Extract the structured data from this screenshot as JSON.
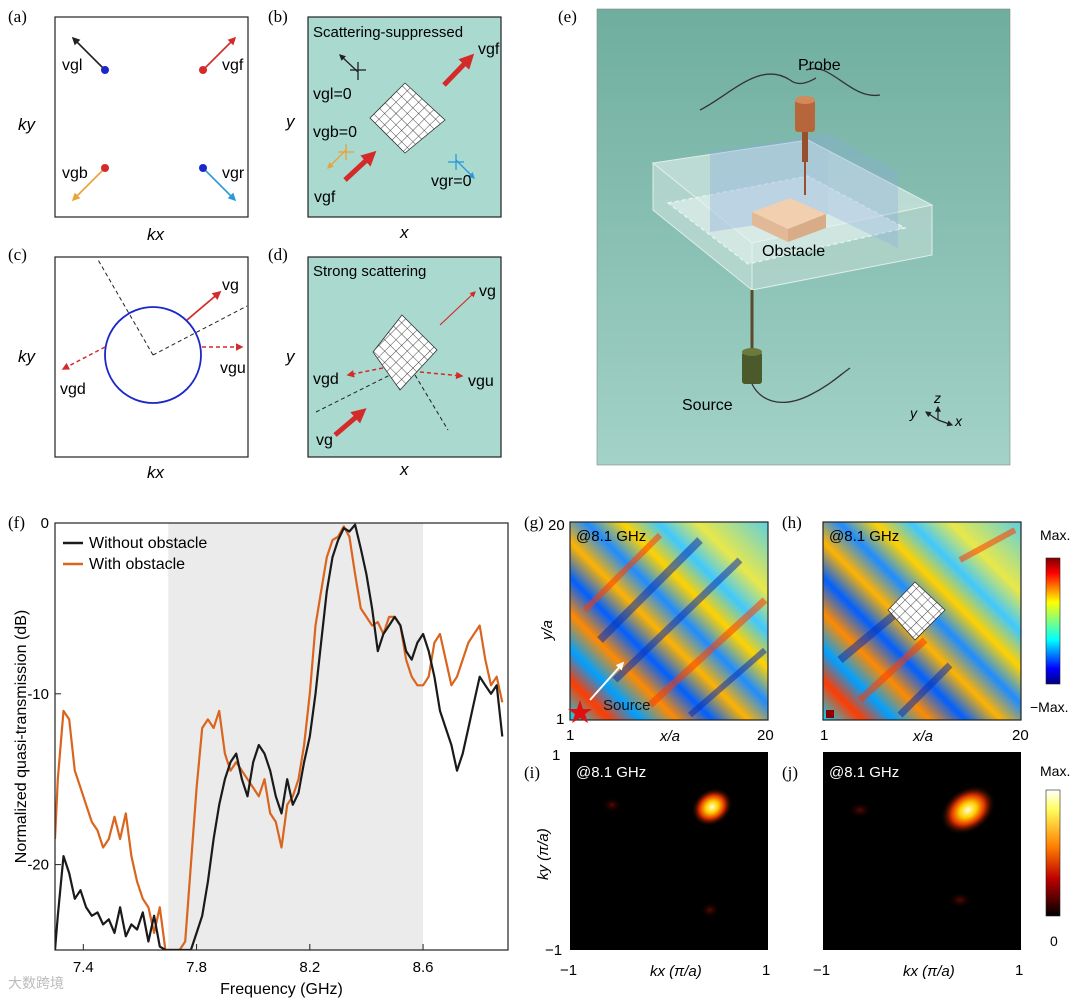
{
  "panel_labels": {
    "a": "(a)",
    "b": "(b)",
    "c": "(c)",
    "d": "(d)",
    "e": "(e)",
    "f": "(f)",
    "g": "(g)",
    "h": "(h)",
    "i": "(i)",
    "j": "(j)"
  },
  "panel_a": {
    "ky": "ky",
    "kx": "kx",
    "vgl": "vgl",
    "vgf": "vgf",
    "vgb": "vgb",
    "vgr": "vgr"
  },
  "panel_b": {
    "title": "Scattering-suppressed",
    "y": "y",
    "x": "x",
    "vgf_top": "vgf",
    "vgl0": "vgl=0",
    "vgb0": "vgb=0",
    "vgr0": "vgr=0",
    "vgf_bottom": "vgf"
  },
  "panel_c": {
    "ky": "ky",
    "kx": "kx",
    "vg": "vg",
    "vgd": "vgd",
    "vgu": "vgu"
  },
  "panel_d": {
    "title": "Strong scattering",
    "y": "y",
    "x": "x",
    "vg_top": "vg",
    "vgd": "vgd",
    "vgu": "vgu",
    "vg_bottom": "vg"
  },
  "panel_e": {
    "probe": "Probe",
    "obstacle": "Obstacle",
    "source": "Source",
    "ax_z": "z",
    "ax_y": "y",
    "ax_x": "x"
  },
  "panel_g": {
    "freq": "@8.1 GHz",
    "ylabel": "y/a",
    "xlabel": "x/a",
    "source": "Source",
    "x_min": "1",
    "x_max": "20",
    "y_min": "1",
    "y_max": "20"
  },
  "panel_h": {
    "freq": "@8.1 GHz",
    "xlabel": "x/a",
    "x_min": "1",
    "x_max": "20",
    "cb_max": "Max.",
    "cb_min": "−Max."
  },
  "panel_i": {
    "freq": "@8.1 GHz",
    "ylabel": "ky (π/a)",
    "xlabel": "kx (π/a)",
    "x_min": "−1",
    "x_max": "1",
    "y_min": "−1",
    "y_max": "1"
  },
  "panel_j": {
    "freq": "@8.1 GHz",
    "xlabel": "kx (π/a)",
    "x_min": "−1",
    "x_max": "1",
    "cb_max": "Max.",
    "cb_min": "0"
  },
  "watermark": "大数跨境",
  "colors": {
    "red": "#d42a2a",
    "orange": "#d9651f",
    "blue": "#1a27c9",
    "teal": "#a9d9cf",
    "shade": "#ebebeb"
  },
  "chart_data": {
    "type": "line",
    "title": "",
    "xlabel": "Frequency (GHz)",
    "ylabel": "Normalized quasi-transmission (dB)",
    "xlim": [
      7.3,
      8.9
    ],
    "ylim": [
      -25,
      0
    ],
    "xticks": [
      7.4,
      7.8,
      8.2,
      8.6
    ],
    "xtick_labels": [
      "7.4",
      "7.8",
      "8.2",
      "8.6"
    ],
    "yticks": [
      0,
      -10,
      -20
    ],
    "ytick_labels": [
      "0",
      "-10",
      "-20"
    ],
    "shaded_band": [
      7.7,
      8.6
    ],
    "legend": "top-left",
    "series": [
      {
        "name": "Without obstacle",
        "color": "#1a1a1a",
        "x": [
          7.3,
          7.31,
          7.33,
          7.35,
          7.37,
          7.39,
          7.41,
          7.43,
          7.45,
          7.47,
          7.49,
          7.51,
          7.53,
          7.55,
          7.57,
          7.59,
          7.61,
          7.63,
          7.65,
          7.67,
          7.69,
          7.7,
          7.72,
          7.74,
          7.76,
          7.78,
          7.8,
          7.82,
          7.84,
          7.86,
          7.88,
          7.9,
          7.92,
          7.94,
          7.96,
          7.98,
          8.0,
          8.02,
          8.04,
          8.06,
          8.08,
          8.1,
          8.12,
          8.14,
          8.16,
          8.18,
          8.2,
          8.22,
          8.24,
          8.26,
          8.28,
          8.3,
          8.32,
          8.34,
          8.36,
          8.38,
          8.4,
          8.42,
          8.44,
          8.46,
          8.48,
          8.5,
          8.52,
          8.54,
          8.56,
          8.58,
          8.6,
          8.62,
          8.64,
          8.66,
          8.68,
          8.7,
          8.72,
          8.74,
          8.76,
          8.78,
          8.8,
          8.82,
          8.84,
          8.86,
          8.88
        ],
        "y": [
          -25,
          -23,
          -19.5,
          -20.5,
          -22,
          -21.5,
          -22.5,
          -23,
          -22.8,
          -23.5,
          -23.2,
          -24,
          -22.5,
          -24.2,
          -23.5,
          -23.8,
          -22.8,
          -24.5,
          -23,
          -24.8,
          -25,
          -25,
          -25,
          -25,
          -25,
          -25,
          -24,
          -23,
          -21,
          -18.5,
          -16.5,
          -15,
          -14,
          -13.5,
          -15,
          -16,
          -14,
          -13,
          -13.5,
          -14.5,
          -16,
          -17,
          -15,
          -16.5,
          -15.8,
          -14,
          -12.5,
          -10,
          -7,
          -4,
          -2,
          -1,
          -0.3,
          -0.5,
          -0.1,
          -1.5,
          -3,
          -5,
          -7.5,
          -6.5,
          -6,
          -5.5,
          -6,
          -7.5,
          -8,
          -7,
          -6.5,
          -7.5,
          -9,
          -11,
          -12,
          -13,
          -14.5,
          -13.5,
          -12,
          -10.5,
          -9,
          -9.5,
          -10,
          -9.5,
          -12.5
        ]
      },
      {
        "name": "With obstacle",
        "color": "#d9651f",
        "x": [
          7.3,
          7.31,
          7.33,
          7.35,
          7.37,
          7.39,
          7.41,
          7.43,
          7.45,
          7.47,
          7.49,
          7.51,
          7.53,
          7.55,
          7.57,
          7.59,
          7.61,
          7.63,
          7.65,
          7.67,
          7.69,
          7.7,
          7.72,
          7.74,
          7.76,
          7.78,
          7.8,
          7.82,
          7.84,
          7.86,
          7.88,
          7.9,
          7.92,
          7.94,
          7.96,
          7.98,
          8.0,
          8.02,
          8.04,
          8.06,
          8.08,
          8.1,
          8.12,
          8.14,
          8.16,
          8.18,
          8.2,
          8.22,
          8.24,
          8.26,
          8.28,
          8.3,
          8.32,
          8.34,
          8.36,
          8.38,
          8.4,
          8.42,
          8.44,
          8.46,
          8.48,
          8.5,
          8.52,
          8.54,
          8.56,
          8.58,
          8.6,
          8.62,
          8.64,
          8.66,
          8.68,
          8.7,
          8.72,
          8.74,
          8.76,
          8.78,
          8.8,
          8.82,
          8.84,
          8.86,
          8.88
        ],
        "y": [
          -18.5,
          -15,
          -11,
          -11.5,
          -14.5,
          -15.5,
          -16.5,
          -17.5,
          -18,
          -19,
          -18.5,
          -17.2,
          -18.5,
          -17,
          -19.5,
          -21,
          -22,
          -22.5,
          -24,
          -22.5,
          -25,
          -25,
          -25,
          -25,
          -24.5,
          -20,
          -15.5,
          -12,
          -11.5,
          -12,
          -11,
          -13.5,
          -14.5,
          -14,
          -14.5,
          -15,
          -15.5,
          -16,
          -15,
          -17,
          -17.5,
          -19,
          -16.5,
          -16,
          -15,
          -13,
          -10,
          -6,
          -4,
          -2,
          -1,
          -0.8,
          -0.2,
          -0.8,
          -3,
          -5,
          -5.5,
          -6,
          -5.8,
          -6.5,
          -5.5,
          -5.5,
          -6,
          -8,
          -9,
          -9.5,
          -9.5,
          -9,
          -7,
          -6.5,
          -8,
          -9.5,
          -9,
          -8,
          -7,
          -6.5,
          -6,
          -8,
          -9.5,
          -9,
          -10.5
        ]
      }
    ]
  }
}
